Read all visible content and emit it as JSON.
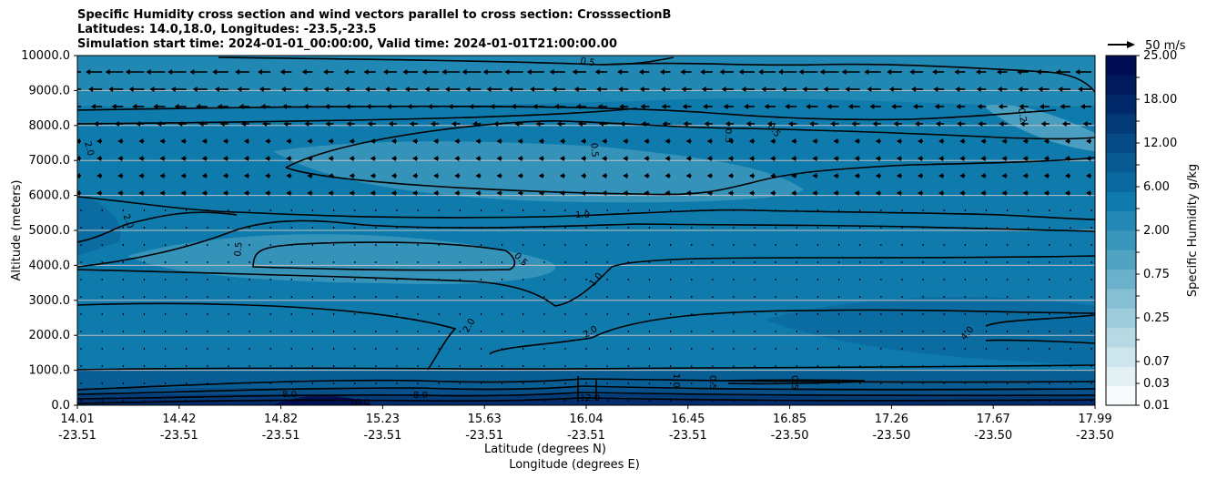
{
  "chart_data": {
    "type": "heatmap",
    "title_lines": [
      "Specific Humidity cross section and wind vectors parallel to cross section: CrosssectionB",
      "Latitudes: 14.0,18.0, Longitudes: -23.5,-23.5",
      "Simulation start time: 2024-01-01_00:00:00, Valid time: 2024-01-01T21:00:00.00"
    ],
    "ylabel": "Altitude (meters)",
    "xlabel_lat": "Latitude (degrees N)",
    "xlabel_lon": "Longitude (degrees E)",
    "ylim": [
      0,
      10000
    ],
    "y_ticks": [
      "0.0",
      "1000.0",
      "2000.0",
      "3000.0",
      "4000.0",
      "5000.0",
      "6000.0",
      "7000.0",
      "8000.0",
      "9000.0",
      "10000.0"
    ],
    "x_ticks": [
      {
        "lat": "14.01",
        "lon": "-23.51"
      },
      {
        "lat": "14.42",
        "lon": "-23.51"
      },
      {
        "lat": "14.82",
        "lon": "-23.51"
      },
      {
        "lat": "15.23",
        "lon": "-23.51"
      },
      {
        "lat": "15.63",
        "lon": "-23.51"
      },
      {
        "lat": "16.04",
        "lon": "-23.51"
      },
      {
        "lat": "16.45",
        "lon": "-23.51"
      },
      {
        "lat": "16.85",
        "lon": "-23.50"
      },
      {
        "lat": "17.26",
        "lon": "-23.50"
      },
      {
        "lat": "17.67",
        "lon": "-23.50"
      },
      {
        "lat": "17.99",
        "lon": "-23.50"
      }
    ],
    "colorbar": {
      "label": "Specific Humidity g/kg",
      "ticks": [
        "0.01",
        "0.03",
        "0.07",
        "0.15",
        "0.25",
        "0.50",
        "0.75",
        "1.00",
        "2.00",
        "4.00",
        "6.00",
        "9.00",
        "12.00",
        "15.00",
        "18.00",
        "21.00",
        "25.00"
      ],
      "shown_tick_labels": [
        "25.00",
        "18.00",
        "12.00",
        "6.00",
        "2.00",
        "0.75",
        "0.25",
        "0.07",
        "0.03",
        "0.01"
      ],
      "colors": [
        "#f7fbfd",
        "#e3f0f4",
        "#cde5ec",
        "#b6d9e4",
        "#9fccdc",
        "#86bfd3",
        "#6cb1cb",
        "#51a3c2",
        "#3a96bb",
        "#2488b4",
        "#0f7bad",
        "#0a6aa0",
        "#085a92",
        "#064a85",
        "#043a77",
        "#022a6a",
        "#011a5c",
        "#000d52"
      ]
    },
    "quiver_key": {
      "label": "50 m/s"
    },
    "contour_labels": [
      "0.5",
      "0.5",
      "0.5",
      "0.5",
      "0.5",
      "0.2",
      "0.5",
      "1.0",
      "1.0",
      "2.0",
      "2.0",
      "2.0",
      "2.0",
      "4.0",
      "8.0",
      "8.0",
      "10.0",
      "12.0",
      "1.0",
      "0.5",
      "0.5"
    ],
    "grid": "horizontal"
  }
}
